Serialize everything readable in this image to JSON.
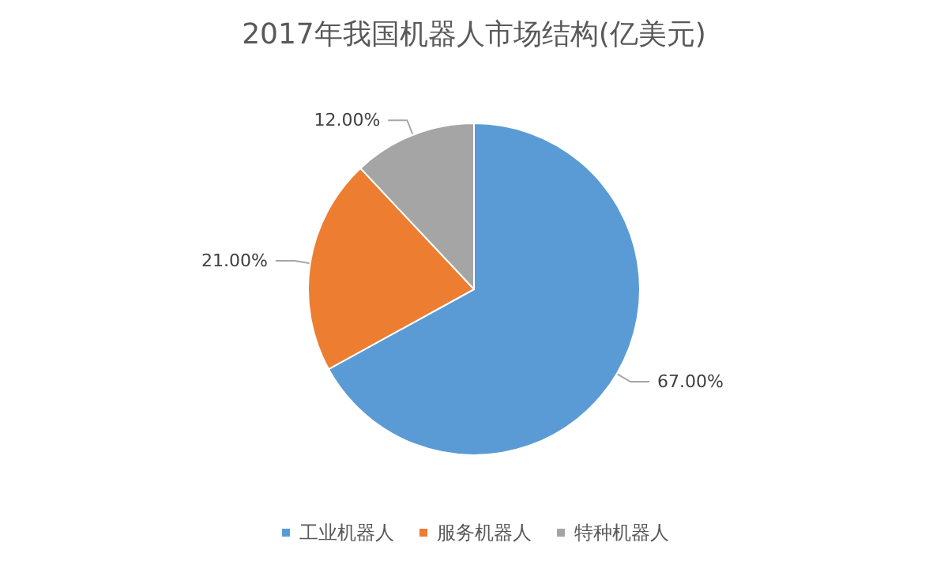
{
  "chart_data": {
    "type": "pie",
    "title": "2017年我国机器人市场结构(亿美元)",
    "categories": [
      "工业机器人",
      "服务机器人",
      "特种机器人"
    ],
    "values": [
      67,
      21,
      12
    ],
    "colors": [
      "#5b9bd5",
      "#ed7d31",
      "#a5a5a5"
    ],
    "value_labels": [
      "67.00%",
      "21.00%",
      "12.00%"
    ],
    "legend": "bottom"
  }
}
